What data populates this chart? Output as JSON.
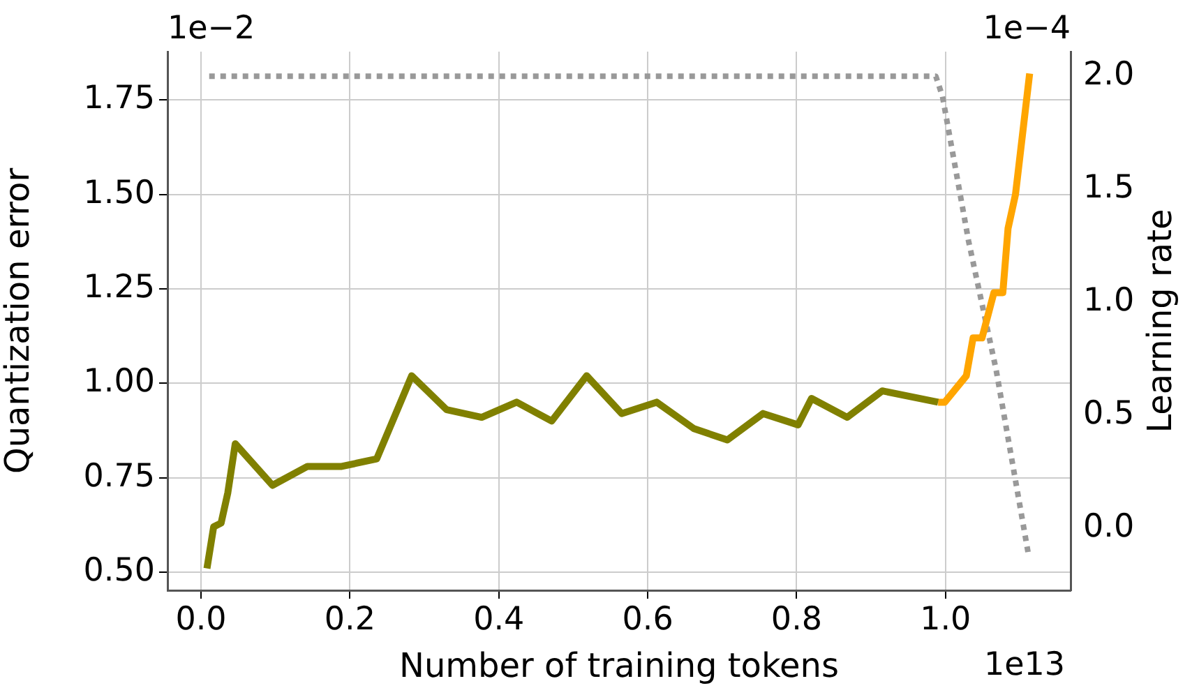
{
  "chart_data": {
    "type": "line",
    "xlabel": "Number of training tokens",
    "ylabel": "Quantization error",
    "y2label": "Learning rate",
    "xlim": [
      -0.045,
      1.168
    ],
    "ylim": [
      0.452,
      1.878
    ],
    "y2lim": [
      -0.276,
      2.109
    ],
    "xticks": [
      {
        "value": 0,
        "label": "0.0"
      },
      {
        "value": 0.2,
        "label": "0.2"
      },
      {
        "value": 0.4,
        "label": "0.4"
      },
      {
        "value": 0.6,
        "label": "0.6"
      },
      {
        "value": 0.8,
        "label": "0.8"
      },
      {
        "value": 1,
        "label": "1.0"
      }
    ],
    "yticks": [
      {
        "value": 0.5,
        "label": "0.50"
      },
      {
        "value": 0.75,
        "label": "0.75"
      },
      {
        "value": 1,
        "label": "1.00"
      },
      {
        "value": 1.25,
        "label": "1.25"
      },
      {
        "value": 1.5,
        "label": "1.50"
      },
      {
        "value": 1.75,
        "label": "1.75"
      }
    ],
    "y2ticks": [
      {
        "value": 0,
        "label": "0.0"
      },
      {
        "value": 0.5,
        "label": "0.5"
      },
      {
        "value": 1,
        "label": "1.0"
      },
      {
        "value": 1.5,
        "label": "1.5"
      },
      {
        "value": 2,
        "label": "2.0"
      }
    ],
    "grid": true,
    "legend": false,
    "marker": "none",
    "annotations": [
      "1e−2",
      "1e−4",
      "1e13"
    ],
    "series": [
      {
        "color": "#808000",
        "line_style": "solid",
        "x": [
          0.008,
          0.017,
          0.027,
          0.036,
          0.046,
          0.096,
          0.143,
          0.189,
          0.236,
          0.283,
          0.33,
          0.377,
          0.424,
          0.471,
          0.518,
          0.565,
          0.612,
          0.662,
          0.707,
          0.755,
          0.802,
          0.82,
          0.868,
          0.915,
          0.99
        ],
        "values": [
          0.51,
          0.62,
          0.63,
          0.71,
          0.84,
          0.73,
          0.78,
          0.78,
          0.8,
          1.02,
          0.93,
          0.91,
          0.95,
          0.9,
          1.02,
          0.92,
          0.95,
          0.88,
          0.85,
          0.92,
          0.89,
          0.96,
          0.91,
          0.98,
          0.95
        ]
      },
      {
        "color": "#ffa500",
        "line_style": "solid",
        "x": [
          0.99,
          0.999,
          1.028,
          1.037,
          1.049,
          1.065,
          1.077,
          1.084,
          1.094,
          1.113
        ],
        "values": [
          0.95,
          0.95,
          1.02,
          1.12,
          1.12,
          1.24,
          1.24,
          1.41,
          1.5,
          1.82
        ]
      },
      {
        "color": "#999999",
        "line_style": "dotted",
        "axis": "y2",
        "x": [
          0.011,
          0.987,
          0.996,
          1.031,
          1.068,
          1.111
        ],
        "values": [
          2.0,
          2.0,
          1.91,
          1.27,
          0.7,
          -0.11
        ]
      }
    ]
  }
}
